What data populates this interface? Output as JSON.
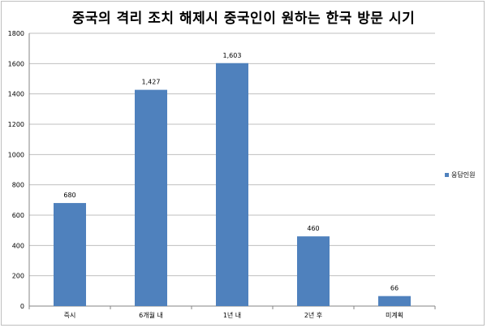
{
  "chart_data": {
    "type": "bar",
    "title": "중국의 격리 조치 해제시 중국인이 원하는 한국 방문 시기",
    "categories": [
      "즉시",
      "6개월 내",
      "1년 내",
      "2년 후",
      "미계획"
    ],
    "series": [
      {
        "name": "응답인원",
        "values": [
          680,
          1427,
          1603,
          460,
          66
        ]
      }
    ],
    "data_labels": [
      "680",
      "1,427",
      "1,603",
      "460",
      "66"
    ],
    "ylim": [
      0,
      1800
    ],
    "yticks": [
      0,
      200,
      400,
      600,
      800,
      1000,
      1200,
      1400,
      1600,
      1800
    ],
    "grid": true,
    "legend_position": "right",
    "bar_color": "#4f81bd"
  }
}
